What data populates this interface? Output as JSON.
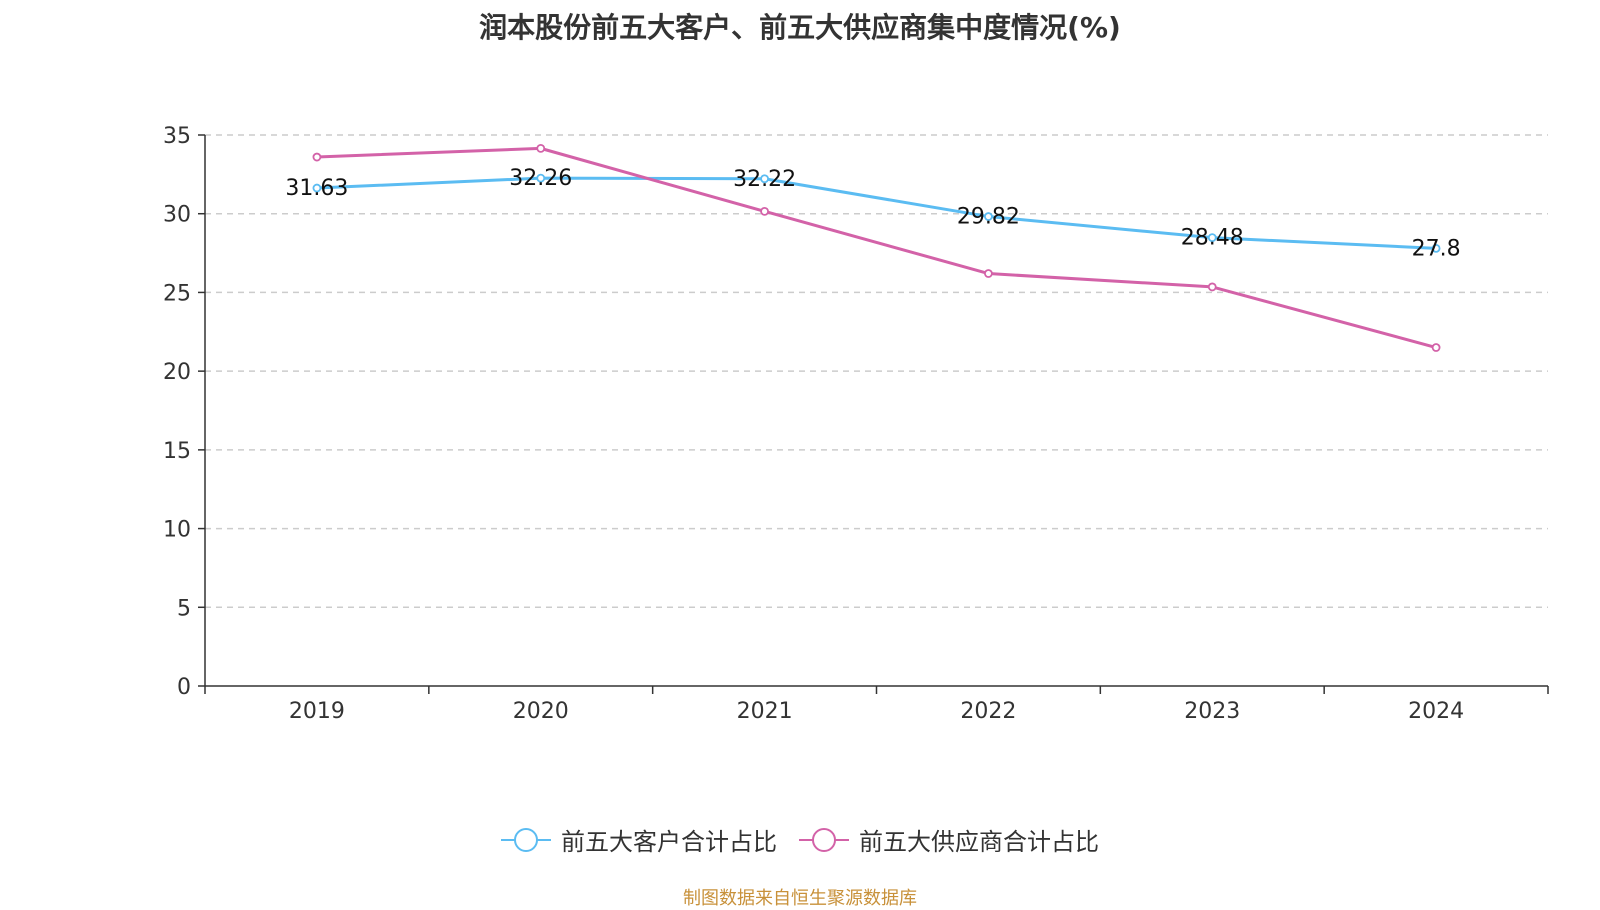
{
  "title": "润本股份前五大客户、前五大供应商集中度情况(%)",
  "source_note": "制图数据来自恒生聚源数据库",
  "chart_data": {
    "type": "line",
    "categories": [
      "2019",
      "2020",
      "2021",
      "2022",
      "2023",
      "2024"
    ],
    "ylim": [
      0,
      35
    ],
    "yticks": [
      0,
      5,
      10,
      15,
      20,
      25,
      30,
      35
    ],
    "grid": true,
    "legend_position": "bottom",
    "series": [
      {
        "name": "前五大客户合计占比",
        "color": "#5bbcf2",
        "values": [
          31.63,
          32.26,
          32.22,
          29.82,
          28.48,
          27.8
        ],
        "labels": [
          "31.63",
          "32.26",
          "32.22",
          "29.82",
          "28.48",
          "27.8"
        ],
        "show_labels": true
      },
      {
        "name": "前五大供应商合计占比",
        "color": "#d362a8",
        "values": [
          33.6,
          34.15,
          30.15,
          26.2,
          25.35,
          21.5
        ],
        "show_labels": false
      }
    ]
  }
}
